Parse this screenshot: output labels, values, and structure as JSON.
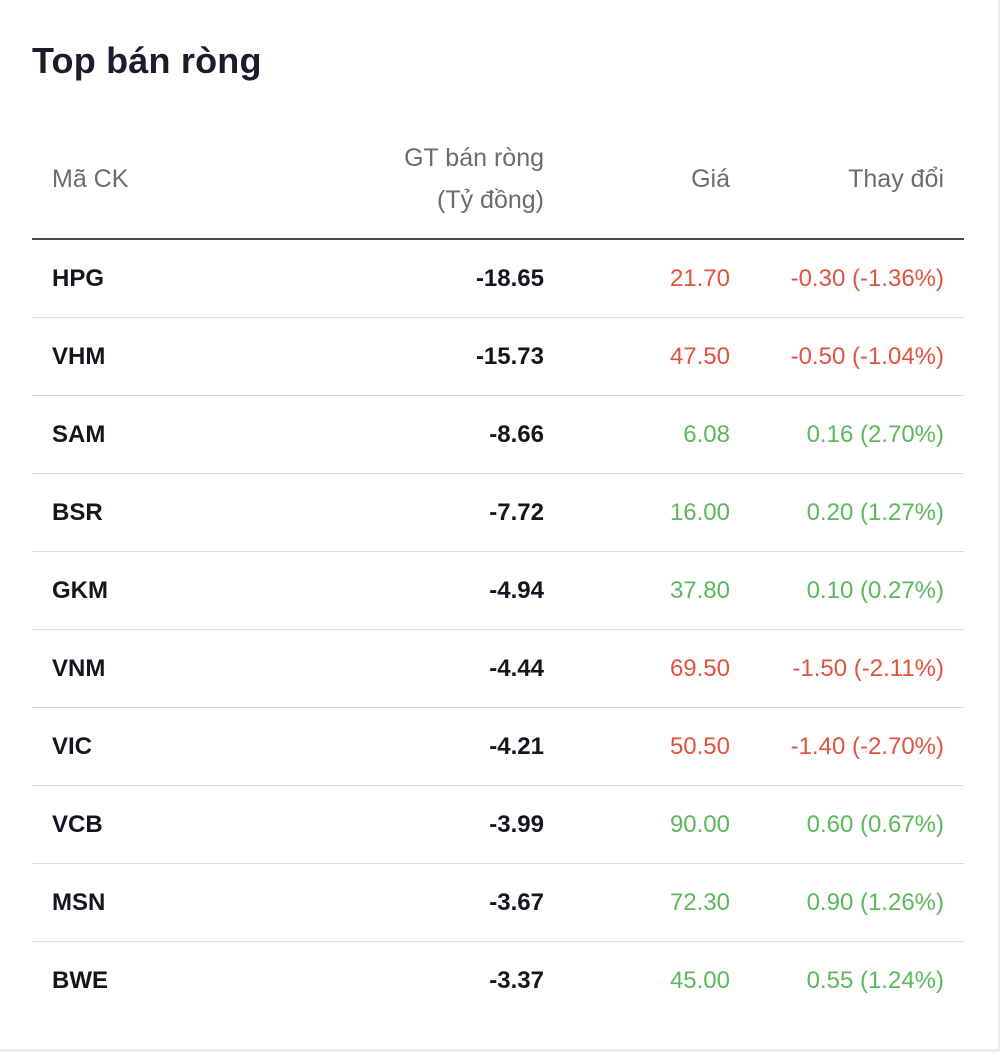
{
  "title": "Top bán ròng",
  "colors": {
    "down": "#e0533f",
    "up": "#5cb85c",
    "header_text": "#6b6b73",
    "row_text": "#151520"
  },
  "columns": {
    "code": "Mã CK",
    "value_line1": "GT bán ròng",
    "value_line2": "(Tỷ đồng)",
    "price": "Giá",
    "change": "Thay đổi"
  },
  "rows": [
    {
      "code": "HPG",
      "value": "-18.65",
      "price": "21.70",
      "change": "-0.30 (-1.36%)",
      "direction": "down"
    },
    {
      "code": "VHM",
      "value": "-15.73",
      "price": "47.50",
      "change": "-0.50 (-1.04%)",
      "direction": "down"
    },
    {
      "code": "SAM",
      "value": "-8.66",
      "price": "6.08",
      "change": "0.16 (2.70%)",
      "direction": "up"
    },
    {
      "code": "BSR",
      "value": "-7.72",
      "price": "16.00",
      "change": "0.20 (1.27%)",
      "direction": "up"
    },
    {
      "code": "GKM",
      "value": "-4.94",
      "price": "37.80",
      "change": "0.10 (0.27%)",
      "direction": "up"
    },
    {
      "code": "VNM",
      "value": "-4.44",
      "price": "69.50",
      "change": "-1.50 (-2.11%)",
      "direction": "down"
    },
    {
      "code": "VIC",
      "value": "-4.21",
      "price": "50.50",
      "change": "-1.40 (-2.70%)",
      "direction": "down"
    },
    {
      "code": "VCB",
      "value": "-3.99",
      "price": "90.00",
      "change": "0.60 (0.67%)",
      "direction": "up"
    },
    {
      "code": "MSN",
      "value": "-3.67",
      "price": "72.30",
      "change": "0.90 (1.26%)",
      "direction": "up"
    },
    {
      "code": "BWE",
      "value": "-3.37",
      "price": "45.00",
      "change": "0.55 (1.24%)",
      "direction": "up"
    }
  ]
}
